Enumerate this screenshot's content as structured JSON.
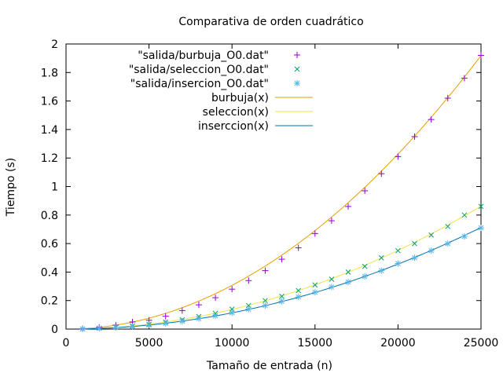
{
  "chart_data": {
    "type": "scatter",
    "title": "Comparativa de orden cuadrático",
    "xlabel": "Tamaño de entrada (n)",
    "ylabel": "Tiempo (s)",
    "xlim": [
      0,
      25000
    ],
    "ylim": [
      0,
      2
    ],
    "xticks": [
      0,
      5000,
      10000,
      15000,
      20000,
      25000
    ],
    "xtick_labels": [
      "0",
      "5000",
      "10000",
      "15000",
      "20000",
      "25000"
    ],
    "yticks": [
      0,
      0.2,
      0.4,
      0.6,
      0.8,
      1,
      1.2,
      1.4,
      1.6,
      1.8,
      2
    ],
    "ytick_labels": [
      "0",
      "0.2",
      "0.4",
      "0.6",
      "0.8",
      "1",
      "1.2",
      "1.4",
      "1.6",
      "1.8",
      "2"
    ],
    "grid": false,
    "legend_position": "top-left",
    "x": [
      1000,
      2000,
      3000,
      4000,
      5000,
      6000,
      7000,
      8000,
      9000,
      10000,
      11000,
      12000,
      13000,
      14000,
      15000,
      16000,
      17000,
      18000,
      19000,
      20000,
      21000,
      22000,
      23000,
      24000,
      25000
    ],
    "series": [
      {
        "name": "\"salida/burbuja_O0.dat\"",
        "marker": "plus",
        "color": "#9400d3",
        "values": [
          0.003,
          0.012,
          0.028,
          0.05,
          0.062,
          0.09,
          0.13,
          0.17,
          0.22,
          0.28,
          0.34,
          0.41,
          0.49,
          0.57,
          0.67,
          0.76,
          0.86,
          0.97,
          1.09,
          1.21,
          1.35,
          1.47,
          1.62,
          1.76,
          1.92
        ]
      },
      {
        "name": "\"salida/seleccion_O0.dat\"",
        "marker": "cross",
        "color": "#009e73",
        "values": [
          0.001,
          0.006,
          0.013,
          0.022,
          0.034,
          0.05,
          0.065,
          0.088,
          0.11,
          0.14,
          0.165,
          0.2,
          0.23,
          0.27,
          0.31,
          0.35,
          0.4,
          0.44,
          0.5,
          0.55,
          0.6,
          0.66,
          0.72,
          0.8,
          0.86
        ]
      },
      {
        "name": "\"salida/insercion_O0.dat\"",
        "marker": "star",
        "color": "#56b4e9",
        "values": [
          0.001,
          0.005,
          0.011,
          0.018,
          0.028,
          0.04,
          0.055,
          0.074,
          0.093,
          0.115,
          0.14,
          0.165,
          0.195,
          0.225,
          0.258,
          0.295,
          0.33,
          0.37,
          0.41,
          0.46,
          0.5,
          0.55,
          0.6,
          0.65,
          0.71
        ]
      },
      {
        "name": "burbuja(x)",
        "type": "line",
        "color": "#e69f00",
        "coef": [
          3.07e-09,
          0,
          0
        ]
      },
      {
        "name": "seleccion(x)",
        "type": "line",
        "color": "#f0e442",
        "coef": [
          1.38e-09,
          0,
          0
        ]
      },
      {
        "name": "inserccion(x)",
        "type": "line",
        "color": "#0072b2",
        "coef": [
          1.14e-09,
          0,
          0
        ]
      }
    ]
  }
}
